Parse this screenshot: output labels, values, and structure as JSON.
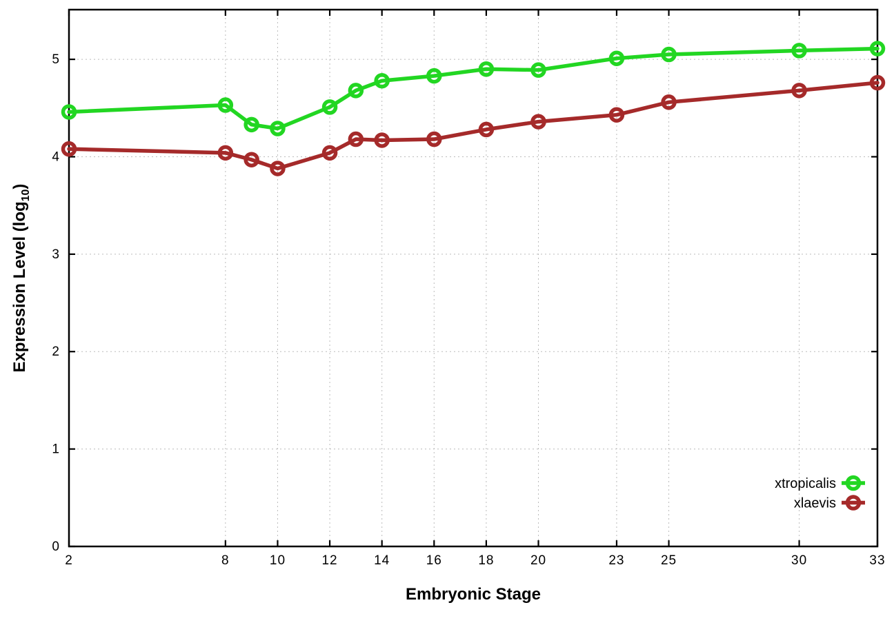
{
  "chart_data": {
    "type": "line",
    "title": "",
    "xlabel": "Embryonic Stage",
    "ylabel": "Expression Level (log10)",
    "ylabel_parts": {
      "pre": "Expression Level (log",
      "sub": "10",
      "post": ")"
    },
    "x": [
      2,
      8,
      9,
      10,
      12,
      13,
      14,
      16,
      18,
      20,
      23,
      25,
      30,
      33
    ],
    "series": [
      {
        "name": "xtropicalis",
        "color": "#22d622",
        "marker": "open-circle",
        "values": [
          4.46,
          4.53,
          4.33,
          4.29,
          4.51,
          4.68,
          4.78,
          4.83,
          4.9,
          4.89,
          5.01,
          5.05,
          5.09,
          5.11
        ]
      },
      {
        "name": "xlaevis",
        "color": "#a52a2a",
        "marker": "open-circle",
        "values": [
          4.08,
          4.04,
          3.97,
          3.88,
          4.04,
          4.18,
          4.17,
          4.18,
          4.28,
          4.36,
          4.43,
          4.56,
          4.68,
          4.76
        ]
      }
    ],
    "x_ticks": [
      2,
      8,
      10,
      12,
      14,
      16,
      18,
      20,
      23,
      25,
      30,
      33
    ],
    "y_ticks": [
      0,
      1,
      2,
      3,
      4,
      5
    ],
    "xlim": [
      2,
      33
    ],
    "ylim": [
      0,
      5.51
    ],
    "grid": true,
    "grid_style": "dotted",
    "legend_position": "inside-bottom-right",
    "colors": {
      "background": "#ffffff",
      "axis": "#000000",
      "grid": "#bbbbbb",
      "text": "#000000"
    }
  }
}
